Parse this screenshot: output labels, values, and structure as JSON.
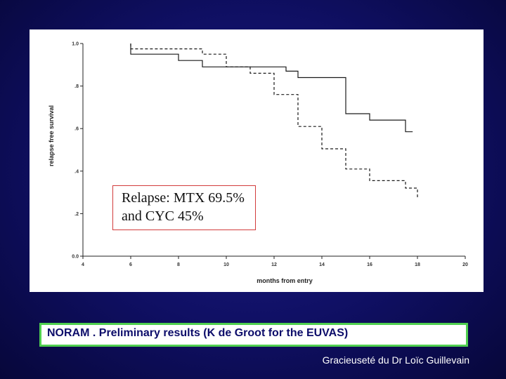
{
  "chart_data": {
    "type": "line",
    "xlabel": "months from entry",
    "ylabel": "relapse free survival",
    "xlim": [
      4,
      20
    ],
    "ylim": [
      0.0,
      1.0
    ],
    "x_ticks": [
      "4",
      "6",
      "8",
      "10",
      "12",
      "14",
      "16",
      "18",
      "20"
    ],
    "y_ticks": [
      "0.0",
      ".2",
      ".4",
      ".6",
      ".8",
      "1.0"
    ],
    "grid": false,
    "series": [
      {
        "style": "solid",
        "x": [
          6,
          6,
          8,
          8,
          9,
          9,
          12.5,
          12.5,
          13,
          13,
          15,
          15,
          16,
          16,
          17.5,
          17.5,
          17.8
        ],
        "y": [
          1.0,
          0.95,
          0.95,
          0.92,
          0.92,
          0.89,
          0.89,
          0.87,
          0.87,
          0.84,
          0.84,
          0.67,
          0.67,
          0.64,
          0.64,
          0.585,
          0.585
        ]
      },
      {
        "style": "dashed",
        "x": [
          6,
          6,
          9,
          9,
          10,
          10,
          11,
          11,
          12,
          12,
          13,
          13,
          14,
          14,
          15,
          15,
          16,
          16,
          17.5,
          17.5,
          18,
          18
        ],
        "y": [
          1.0,
          0.975,
          0.975,
          0.95,
          0.95,
          0.89,
          0.89,
          0.86,
          0.86,
          0.76,
          0.76,
          0.61,
          0.61,
          0.505,
          0.505,
          0.41,
          0.41,
          0.355,
          0.355,
          0.32,
          0.32,
          0.27
        ]
      }
    ],
    "annotation": [
      "Relapse: MTX 69.5%",
      "and CYC 45%"
    ]
  },
  "caption": "NORAM . Preliminary results (K de Groot for the EUVAS)",
  "credit": "Gracieuseté du Dr Loïc Guillevain"
}
